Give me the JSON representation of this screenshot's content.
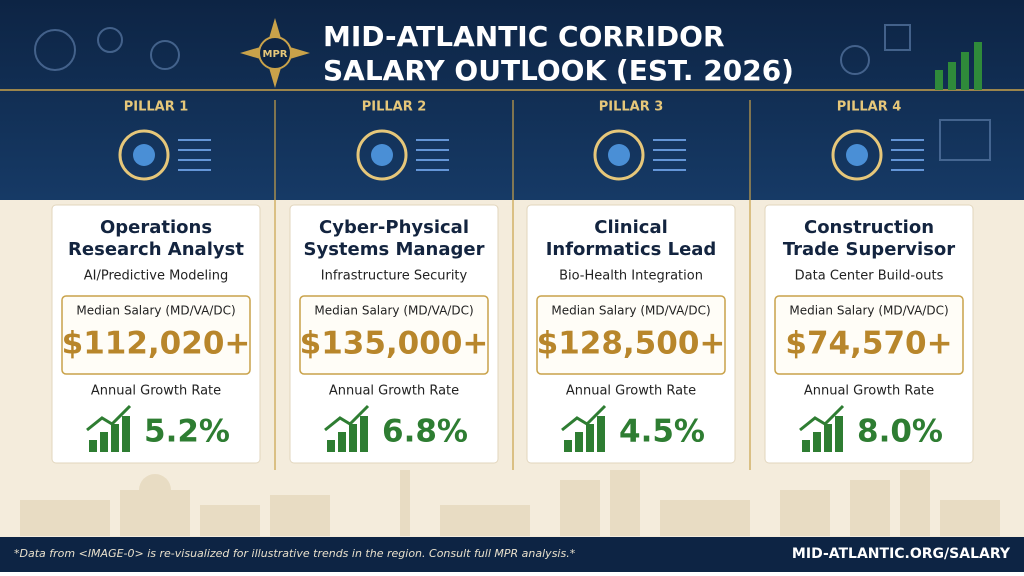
{
  "header": {
    "badge": "MPR",
    "title_lines": [
      "MID-ATLANTIC CORRIDOR",
      "SALARY OUTLOOK (EST. 2026)"
    ]
  },
  "pillars": [
    {
      "label": "PILLAR 1",
      "title_lines": [
        "Operations",
        "Research Analyst"
      ],
      "subtitle": "AI/Predictive Modeling",
      "salary_label": "Median Salary (MD/VA/DC)",
      "salary": "$112,020+",
      "growth_label": "Annual Growth Rate",
      "growth": "5.2%"
    },
    {
      "label": "PILLAR 2",
      "title_lines": [
        "Cyber-Physical",
        "Systems Manager"
      ],
      "subtitle": "Infrastructure Security",
      "salary_label": "Median Salary (MD/VA/DC)",
      "salary": "$135,000+",
      "growth_label": "Annual Growth Rate",
      "growth": "6.8%"
    },
    {
      "label": "PILLAR 3",
      "title_lines": [
        "Clinical",
        "Informatics Lead"
      ],
      "subtitle": "Bio-Health Integration",
      "salary_label": "Median Salary (MD/VA/DC)",
      "salary": "$128,500+",
      "growth_label": "Annual Growth Rate",
      "growth": "4.5%"
    },
    {
      "label": "PILLAR 4",
      "title_lines": [
        "Construction",
        "Trade Supervisor"
      ],
      "subtitle": "Data Center Build-outs",
      "salary_label": "Median Salary (MD/VA/DC)",
      "salary": "$74,570+",
      "growth_label": "Annual Growth Rate",
      "growth": "8.0%"
    }
  ],
  "footer": {
    "note": "*Data from <IMAGE-0> is re-visualized for illustrative trends in the region. Consult full MPR analysis.*",
    "url": "MID-ATLANTIC.ORG/SALARY"
  }
}
